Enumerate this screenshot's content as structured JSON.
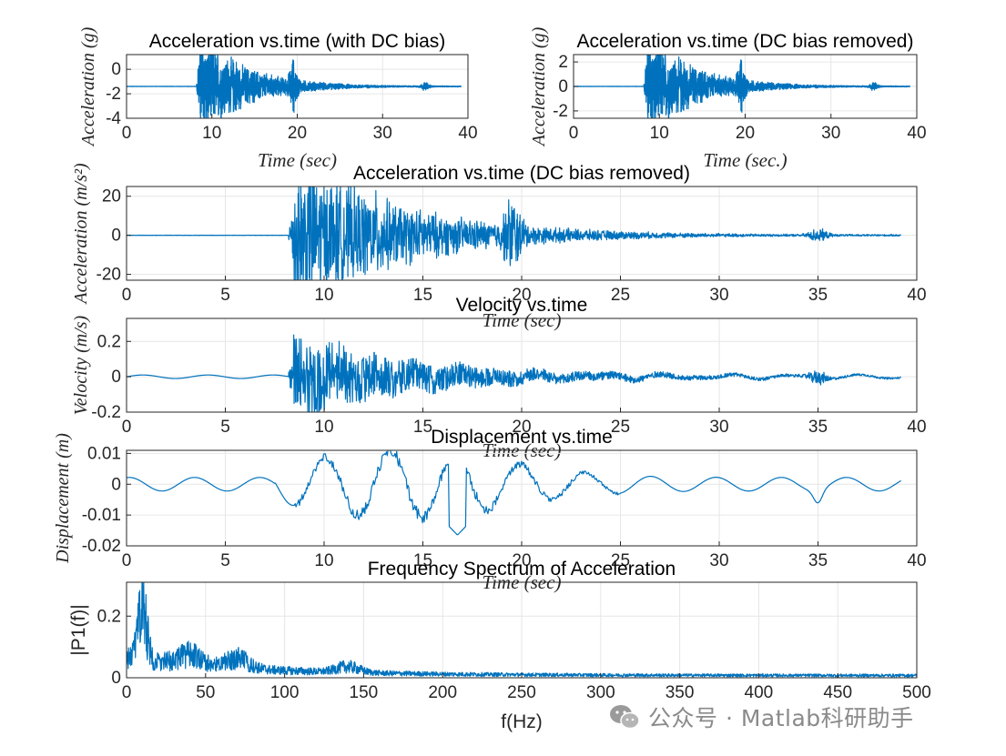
{
  "colors": {
    "series": "#0072bd",
    "axis": "#262626",
    "grid": "#e6e6e6"
  },
  "watermark": {
    "icon": "wechat-icon",
    "text": "公众号 · Matlab科研助手"
  },
  "chart_data": [
    {
      "id": "p1",
      "type": "line",
      "title": "Acceleration vs.time (with DC bias)",
      "xlabel": "Time (sec)",
      "ylabel": "Acceleration (g)",
      "xlim": [
        0,
        40
      ],
      "ylim": [
        -4,
        1.2
      ],
      "xticks": [
        0,
        10,
        20,
        30,
        40
      ],
      "yticks": [
        -4,
        -2,
        0
      ],
      "series": [
        {
          "name": "acc_g_bias",
          "envelope_shape": "seismic",
          "start": 0,
          "end": 39.2,
          "onset": 8.2,
          "baseline": -1.4,
          "peak": 5.2,
          "noise": 0.01,
          "aftershock": {
            "t": 35,
            "amp": 0.35
          }
        }
      ]
    },
    {
      "id": "p2",
      "type": "line",
      "title": "Acceleration vs.time (DC bias removed)",
      "xlabel": "Time (sec.)",
      "ylabel": "Acceleration (g)",
      "xlim": [
        0,
        40
      ],
      "ylim": [
        -2.6,
        2.6
      ],
      "xticks": [
        0,
        10,
        20,
        30,
        40
      ],
      "yticks": [
        -2,
        0,
        2
      ],
      "series": [
        {
          "name": "acc_g",
          "envelope_shape": "seismic",
          "start": 0,
          "end": 39.2,
          "onset": 8.2,
          "baseline": 0,
          "peak": 5.2,
          "noise": 0.01,
          "aftershock": {
            "t": 35,
            "amp": 0.35
          }
        }
      ]
    },
    {
      "id": "p3",
      "type": "line",
      "title": "Acceleration vs.time (DC bias removed)",
      "xlabel": "Time (sec)",
      "ylabel": "Acceleration (m/s²)",
      "xlim": [
        0,
        40
      ],
      "ylim": [
        -23,
        25
      ],
      "xticks": [
        0,
        5,
        10,
        15,
        20,
        25,
        30,
        35,
        40
      ],
      "yticks": [
        -20,
        0,
        20
      ],
      "series": [
        {
          "name": "acc_ms2",
          "envelope_shape": "seismic",
          "start": 0,
          "end": 39.2,
          "onset": 8.2,
          "baseline": 0,
          "peak": 50,
          "noise": 0.1,
          "aftershock": {
            "t": 35,
            "amp": 3.5
          }
        }
      ]
    },
    {
      "id": "p4",
      "type": "line",
      "title": "Velocity vs.time",
      "xlabel": "Time (sec)",
      "ylabel": "Velocity (m/s)",
      "xlim": [
        0,
        40
      ],
      "ylim": [
        -0.2,
        0.33
      ],
      "xticks": [
        0,
        5,
        10,
        15,
        20,
        25,
        30,
        35,
        40
      ],
      "yticks": [
        -0.2,
        0,
        0.2
      ],
      "series": [
        {
          "name": "velocity",
          "envelope_shape": "velocity",
          "start": 0,
          "end": 39.2,
          "onset": 8.2,
          "baseline": 0,
          "peak": 0.3,
          "pre_wave": 0.01,
          "aftershock": {
            "t": 35,
            "amp": 0.04
          }
        }
      ]
    },
    {
      "id": "p5",
      "type": "line",
      "title": "Displacement vs.time",
      "xlabel": "Time (sec)",
      "ylabel": "Displacement (m)",
      "xlim": [
        0,
        40
      ],
      "ylim": [
        -0.02,
        0.011
      ],
      "xticks": [
        0,
        5,
        10,
        15,
        20,
        25,
        30,
        35,
        40
      ],
      "yticks": [
        -0.02,
        -0.01,
        0,
        0.01
      ],
      "series": [
        {
          "name": "displacement",
          "envelope_shape": "displacement",
          "start": 0,
          "end": 39.2,
          "period": 3.3,
          "amp_quiet": 0.0022,
          "amp_peak": 0.011,
          "min": -0.0165,
          "aftershock": {
            "t": 35,
            "amp": 0.004
          }
        }
      ]
    },
    {
      "id": "p6",
      "type": "line",
      "title": "Frequency Spectrum of Acceleration",
      "xlabel": "f(Hz)",
      "ylabel": "|P1(f)|",
      "xlim": [
        0,
        500
      ],
      "ylim": [
        0,
        0.31
      ],
      "xticks": [
        0,
        50,
        100,
        150,
        200,
        250,
        300,
        350,
        400,
        450,
        500
      ],
      "yticks": [
        0,
        0.2
      ],
      "series": [
        {
          "name": "spectrum",
          "envelope_shape": "spectrum",
          "start": 0,
          "end": 500,
          "peak_f": 10,
          "peak": 0.31,
          "secondary": [
            {
              "f": 40,
              "a": 0.09
            },
            {
              "f": 70,
              "a": 0.085
            },
            {
              "f": 140,
              "a": 0.05
            }
          ]
        }
      ]
    }
  ]
}
